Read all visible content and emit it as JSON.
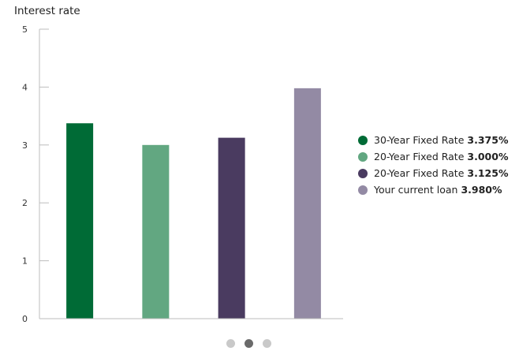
{
  "chart_data": {
    "type": "bar",
    "title": "Interest rate",
    "xlabel": "",
    "ylabel": "",
    "ylim": [
      0,
      5
    ],
    "yticks": [
      "0",
      "1",
      "2",
      "3",
      "4",
      "5"
    ],
    "grid": false,
    "legend_position": "right",
    "bars": [
      {
        "label": "30-Year Fixed Rate",
        "value_text": "3.375%",
        "value": 3.375,
        "color": "#006b36"
      },
      {
        "label": "20-Year Fixed Rate",
        "value_text": "3.000%",
        "value": 3.0,
        "color": "#62a781"
      },
      {
        "label": "20-Year Fixed Rate",
        "value_text": "3.125%",
        "value": 3.125,
        "color": "#4a3b60"
      },
      {
        "label": "Your current loan",
        "value_text": "3.980%",
        "value": 3.98,
        "color": "#938aa4"
      }
    ]
  },
  "pager": {
    "count": 3,
    "active_index": 1
  }
}
